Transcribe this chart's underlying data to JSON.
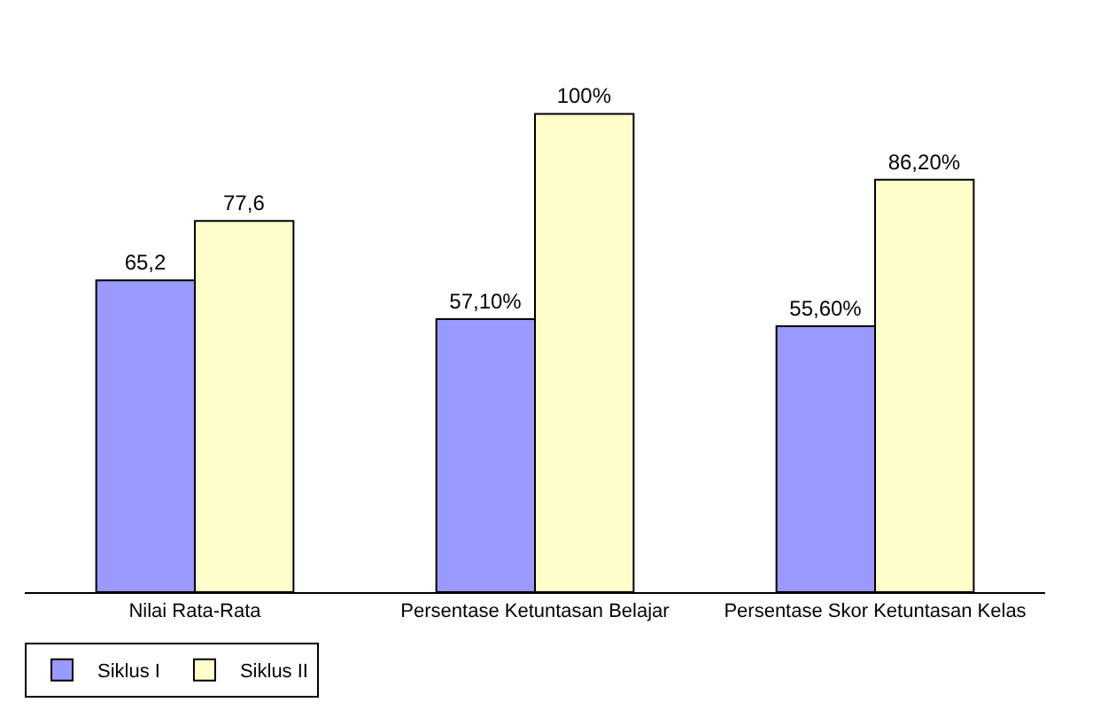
{
  "chart_data": {
    "type": "bar",
    "categories": [
      "Nilai Rata-Rata",
      "Persentase Ketuntasan Belajar",
      "Persentase Skor Ketuntasan Kelas"
    ],
    "series": [
      {
        "name": "Siklus I",
        "color": "#9999ff",
        "values": [
          65.2,
          57.1,
          55.6
        ],
        "value_labels": [
          "65,2",
          "57,10%",
          "55,60%"
        ]
      },
      {
        "name": "Siklus II",
        "color": "#ffffcc",
        "values": [
          77.6,
          100,
          86.2
        ],
        "value_labels": [
          "77,6",
          "100%",
          "86,20%"
        ]
      }
    ],
    "legend": "bottom left"
  }
}
